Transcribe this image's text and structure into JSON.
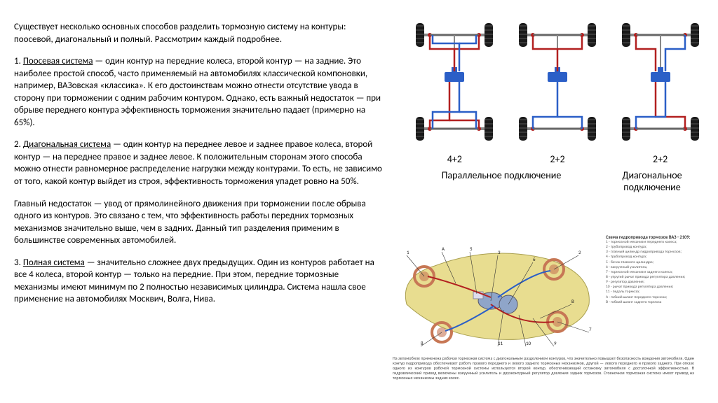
{
  "intro": "Существует несколько основных способов разделить тормозную систему на контуры: поосевой, диагональный и полный. Рассмотрим каждый подробнее.",
  "section1": {
    "num": "1. ",
    "title": "Поосевая система",
    "body": " — один контур на передние колеса, второй контур — на задние. Это наиболее простой способ, часто применяемый на автомобилях классической компоновки, например, ВАЗовская «классика». К его достоинствам можно отнести отсутствие увода в сторону при торможении с одним рабочим контуром. Однако, есть важный недостаток — при обрыве переднего контура эффективность торможения значительно падает (примерно на 65%)."
  },
  "section2": {
    "num": "2. ",
    "title": "Диагональная система",
    "body1": " — один контур на переднее левое и заднее правое колеса, второй контур — на переднее правое и заднее левое. К положительным сторонам этого способа можно отнести равномерное распределение нагрузки между контурами. То есть, не зависимо от того, какой контур выйдет из строя, эффективность торможения упадет ровно на 50%.",
    "body2": "Главный недостаток — увод от прямолинейного движения при торможении после обрыва одного из контуров. Это связано с тем, что эффективность работы передних тормозных механизмов значительно выше, чем в задних. Данный тип разделения применим в большинстве современных автомобилей."
  },
  "section3": {
    "num": "3. ",
    "title": "Полная система",
    "body": " — значительно сложнее двух предыдущих. Один из контуров работает на все 4 колеса, второй контур — только на передние. При этом, передние тормозные механизмы имеют минимум по 2 полностью независимых цилиндра. Система нашла свое применение на автомобилях Москвич, Волга, Нива."
  },
  "diagram_top": {
    "scheme_labels": [
      "4+2",
      "2+2",
      "2+2"
    ],
    "caption_left": "Параллельное подключение",
    "caption_right": "Диагональное подключение",
    "wheel_color": "#1a1a1a",
    "tread_color": "#333333",
    "axle_color": "#b22020",
    "master_color": "#2b5fc7",
    "circuit1_color": "#b22020",
    "circuit2_color": "#2b5fc7",
    "joint_color": "#b22020",
    "bg": "#ffffff"
  },
  "diagram_bottom": {
    "body_fill": "#e8dd90",
    "body_stroke": "#aaa050",
    "pipe1": "#b22020",
    "pipe2": "#2b5fc7",
    "cylinder": "#8fa5c9",
    "wheel": "#c77755",
    "title": "Схема гидропривода тормозов ВАЗ - 2109:",
    "legend_lines": [
      "1 - тормозной механизм переднего колеса;",
      "2 - трубопровод контура;",
      "3 - главный цилиндр гидропривода тормозов;",
      "4 - трубопровод контура;",
      "5 - бачок главного цилиндра;",
      "6 - вакуумный усилитель;",
      "7 - тормозной механизм заднего колеса;",
      "8 - упругий рычаг привода регулятора давления;",
      "9 - регулятор давления;",
      "10 - рычаг привода регулятора давления;",
      "11 - педаль тормоза;",
      "A - гибкий шланг переднего тормоза;",
      "B - гибкий шланг заднего тормоза"
    ],
    "caption": "На автомобиле применена рабочая тормозная система с диагональным разделением контуров, что значительно повышает безопасность вождения автомобиля. Один контур гидропривода обеспечивает работу правого переднего и левого заднего тормозных механизмов, другой — левого переднего и правого заднего. При отказе одного из контуров рабочей тормозной системы используется второй контур, обеспечивающий остановку автомобиля с достаточной эффективностью. В гидравлический привод включены вакуумный усилитель и двухконтурный регулятор давления задних тормозов. Стояночная тормозная система имеет привод на тормозные механизмы задних колес."
  }
}
